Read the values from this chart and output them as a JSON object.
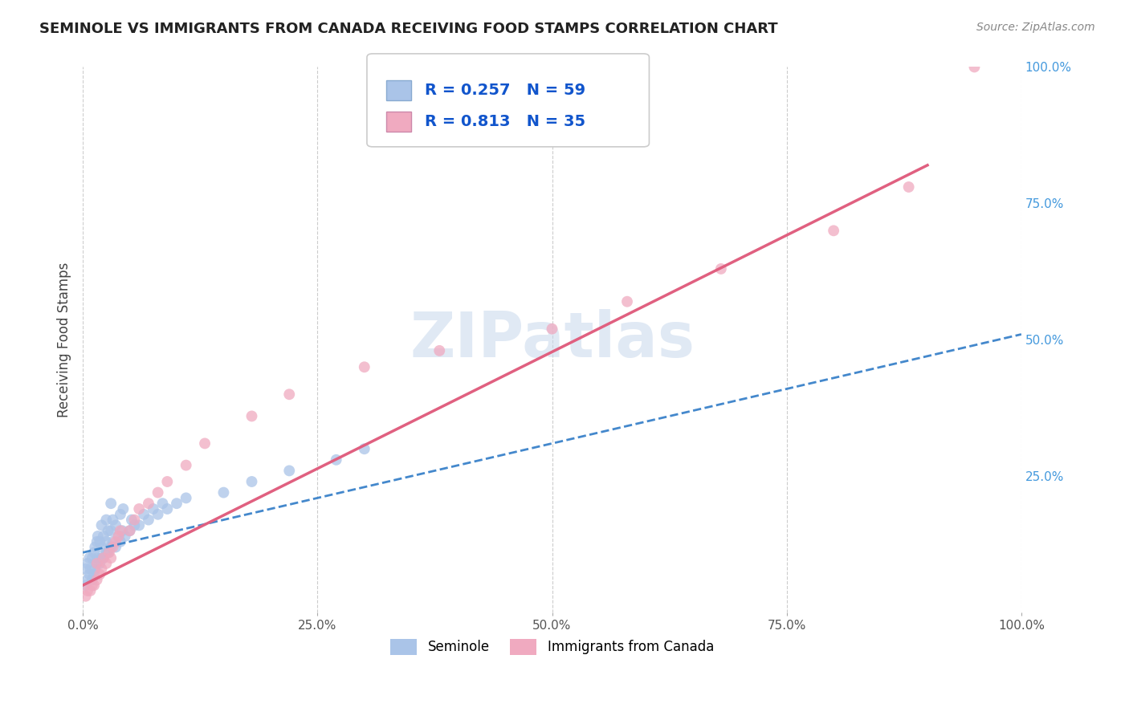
{
  "title": "SEMINOLE VS IMMIGRANTS FROM CANADA RECEIVING FOOD STAMPS CORRELATION CHART",
  "source": "Source: ZipAtlas.com",
  "ylabel": "Receiving Food Stamps",
  "xlim": [
    0,
    1.0
  ],
  "ylim": [
    0,
    1.0
  ],
  "xtick_labels": [
    "0.0%",
    "25.0%",
    "50.0%",
    "75.0%",
    "100.0%"
  ],
  "xtick_vals": [
    0.0,
    0.25,
    0.5,
    0.75,
    1.0
  ],
  "ytick_labels": [
    "25.0%",
    "50.0%",
    "75.0%",
    "100.0%"
  ],
  "ytick_vals": [
    0.25,
    0.5,
    0.75,
    1.0
  ],
  "seminole_color": "#aac4e8",
  "canada_color": "#f0aac0",
  "seminole_line_color": "#4488cc",
  "canada_line_color": "#e06080",
  "R_seminole": 0.257,
  "N_seminole": 59,
  "R_canada": 0.813,
  "N_canada": 35,
  "watermark": "ZIPatlas",
  "legend_label_1": "Seminole",
  "legend_label_2": "Immigrants from Canada",
  "seminole_x": [
    0.003,
    0.003,
    0.005,
    0.005,
    0.007,
    0.007,
    0.008,
    0.01,
    0.01,
    0.012,
    0.012,
    0.013,
    0.013,
    0.015,
    0.015,
    0.016,
    0.016,
    0.018,
    0.018,
    0.02,
    0.02,
    0.02,
    0.022,
    0.022,
    0.025,
    0.025,
    0.025,
    0.027,
    0.027,
    0.03,
    0.03,
    0.03,
    0.032,
    0.032,
    0.035,
    0.035,
    0.038,
    0.04,
    0.04,
    0.042,
    0.043,
    0.045,
    0.05,
    0.052,
    0.055,
    0.06,
    0.065,
    0.07,
    0.075,
    0.08,
    0.085,
    0.09,
    0.1,
    0.11,
    0.15,
    0.18,
    0.22,
    0.27,
    0.3
  ],
  "seminole_y": [
    0.05,
    0.08,
    0.06,
    0.09,
    0.07,
    0.1,
    0.08,
    0.06,
    0.1,
    0.07,
    0.11,
    0.08,
    0.12,
    0.09,
    0.13,
    0.1,
    0.14,
    0.09,
    0.13,
    0.1,
    0.12,
    0.16,
    0.1,
    0.14,
    0.11,
    0.13,
    0.17,
    0.11,
    0.15,
    0.12,
    0.15,
    0.2,
    0.13,
    0.17,
    0.12,
    0.16,
    0.14,
    0.13,
    0.18,
    0.15,
    0.19,
    0.14,
    0.15,
    0.17,
    0.16,
    0.16,
    0.18,
    0.17,
    0.19,
    0.18,
    0.2,
    0.19,
    0.2,
    0.21,
    0.22,
    0.24,
    0.26,
    0.28,
    0.3
  ],
  "canada_x": [
    0.003,
    0.005,
    0.008,
    0.01,
    0.012,
    0.015,
    0.015,
    0.018,
    0.02,
    0.022,
    0.025,
    0.028,
    0.03,
    0.032,
    0.035,
    0.038,
    0.04,
    0.05,
    0.055,
    0.06,
    0.07,
    0.08,
    0.09,
    0.11,
    0.13,
    0.18,
    0.22,
    0.3,
    0.38,
    0.5,
    0.58,
    0.68,
    0.8,
    0.88,
    0.95
  ],
  "canada_y": [
    0.03,
    0.04,
    0.04,
    0.05,
    0.05,
    0.06,
    0.09,
    0.07,
    0.08,
    0.1,
    0.09,
    0.11,
    0.1,
    0.12,
    0.13,
    0.14,
    0.15,
    0.15,
    0.17,
    0.19,
    0.2,
    0.22,
    0.24,
    0.27,
    0.31,
    0.36,
    0.4,
    0.45,
    0.48,
    0.52,
    0.57,
    0.63,
    0.7,
    0.78,
    1.0
  ],
  "seminole_trendline_x": [
    0.0,
    1.0
  ],
  "seminole_trendline_y": [
    0.11,
    0.51
  ],
  "canada_trendline_x": [
    0.0,
    0.9
  ],
  "canada_trendline_y": [
    0.05,
    0.82
  ]
}
